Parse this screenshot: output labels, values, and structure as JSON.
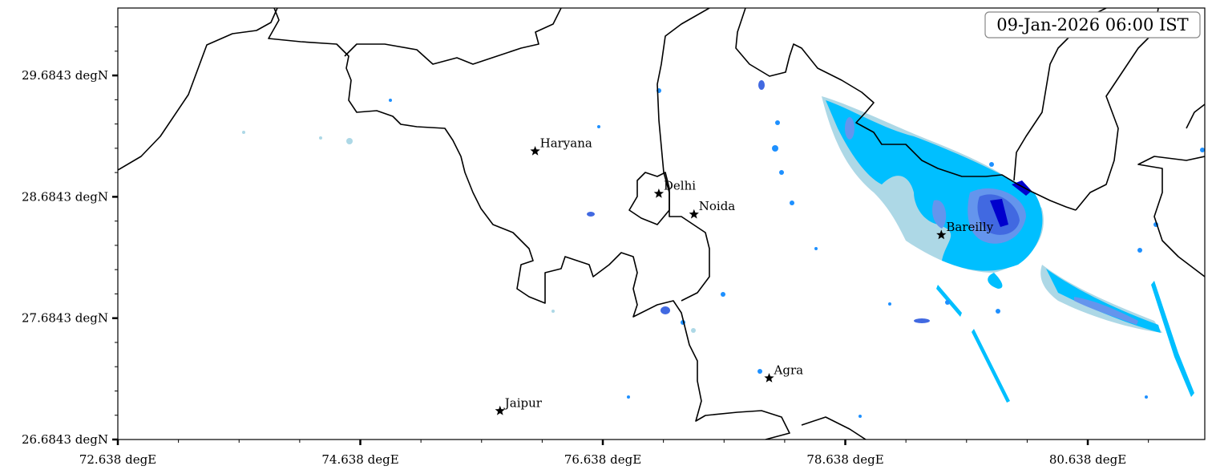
{
  "map": {
    "timestamp": "09-Jan-2026 06:00 IST",
    "x_axis": {
      "unit": "degE",
      "range": [
        72.638,
        81.603
      ],
      "ticks": [
        "72.638 degE",
        "74.638 degE",
        "76.638 degE",
        "78.638 degE",
        "80.638 degE"
      ],
      "tick_values": [
        72.638,
        74.638,
        76.638,
        78.638,
        80.638
      ]
    },
    "y_axis": {
      "unit": "degN",
      "range": [
        26.6843,
        30.24
      ],
      "ticks": [
        "26.6843 degN",
        "27.6843 degN",
        "28.6843 degN",
        "29.6843 degN"
      ],
      "tick_values": [
        26.6843,
        27.6843,
        28.6843,
        29.6843
      ]
    },
    "cities": [
      {
        "name": "Haryana",
        "lon": 76.08,
        "lat": 29.06
      },
      {
        "name": "Delhi",
        "lon": 77.1,
        "lat": 28.71
      },
      {
        "name": "Noida",
        "lon": 77.39,
        "lat": 28.54
      },
      {
        "name": "Bareilly",
        "lon": 79.43,
        "lat": 28.37
      },
      {
        "name": "Agra",
        "lon": 78.01,
        "lat": 27.19
      },
      {
        "name": "Jaipur",
        "lon": 75.79,
        "lat": 26.92
      }
    ],
    "precip_colors": [
      "#add8e6",
      "#00bfff",
      "#6495ed",
      "#4169e1",
      "#0000cd"
    ],
    "marker_icon": "star-icon"
  }
}
